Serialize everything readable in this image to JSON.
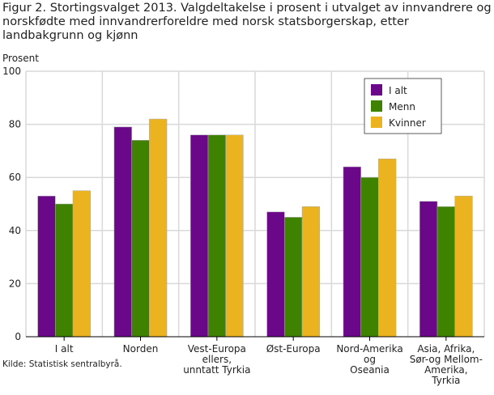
{
  "chart_data": {
    "type": "bar",
    "title": "Figur 2. Stortingsvalget 2013. Valgdeltakelse i prosent i utvalget av innvandrere og norskfødte med innvandrerforeldre med norsk statsborgerskap, etter landbakgrunn og kjønn",
    "ylabel": "Prosent",
    "xlabel": "",
    "ylim": [
      0,
      100
    ],
    "yticks": [
      0,
      20,
      40,
      60,
      80,
      100
    ],
    "grid": true,
    "legend_position": "top-right",
    "categories": [
      [
        "I alt"
      ],
      [
        "Norden"
      ],
      [
        "Vest-Europa",
        "ellers,",
        "unntatt Tyrkia"
      ],
      [
        "Øst-Europa"
      ],
      [
        "Nord-Amerika",
        "og",
        "Oseania"
      ],
      [
        "Asia, Afrika,",
        "Sør-og Mellom-",
        "Amerika,",
        "Tyrkia"
      ]
    ],
    "series": [
      {
        "name": "I alt",
        "color": "#6a0889",
        "values": [
          53,
          79,
          76,
          47,
          64,
          51
        ]
      },
      {
        "name": "Menn",
        "color": "#3e8200",
        "values": [
          50,
          74,
          76,
          45,
          60,
          49
        ]
      },
      {
        "name": "Kvinner",
        "color": "#eab31f",
        "values": [
          55,
          82,
          76,
          49,
          67,
          53
        ]
      }
    ],
    "source": "Kilde: Statistisk sentralbyrå."
  }
}
